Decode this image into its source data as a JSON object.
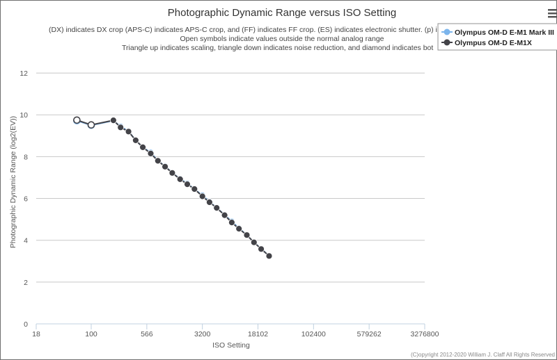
{
  "chart_data": {
    "type": "line",
    "title": "Photographic Dynamic Range versus ISO Setting",
    "subtitle_lines": [
      "(DX) indicates DX crop (APS-C) indicates APS-C crop, and (FF) indicates FF crop. (ES) indicates electronic shutter. (p) ind",
      "Open symbols indicate values outside the normal analog range",
      "Triangle up indicates scaling, triangle down indicates noise reduction, and diamond indicates bot"
    ],
    "xlabel": "ISO Setting",
    "ylabel": "Photographic Dynamic Range (log2(EV))",
    "x_scale": "log2",
    "xlim": [
      18,
      3276800
    ],
    "x_ticks": [
      18,
      100,
      566,
      3200,
      18102,
      102400,
      579262,
      3276800
    ],
    "x_tick_labels": [
      "18",
      "100",
      "566",
      "3200",
      "18102",
      "102400",
      "579262",
      "3276800"
    ],
    "ylim": [
      0,
      13
    ],
    "y_ticks": [
      0,
      2,
      4,
      6,
      8,
      10,
      12
    ],
    "y_tick_labels": [
      "0",
      "2",
      "4",
      "6",
      "8",
      "10",
      "12"
    ],
    "grid": true,
    "legend_position": "top-right",
    "credit": "(C)opyright 2012-2020 William J. Claff All Rights Reserved",
    "series": [
      {
        "name": "Olympus OM-D E-M1 Mark III",
        "color": "#7cb5ec",
        "marker": "circle",
        "points": [
          {
            "x": 64,
            "y": 9.72,
            "open": true
          },
          {
            "x": 100,
            "y": 9.5,
            "open": true
          },
          {
            "x": 200,
            "y": 9.72,
            "open": false
          },
          {
            "x": 250,
            "y": 9.45,
            "open": false
          },
          {
            "x": 320,
            "y": 9.22,
            "open": false
          },
          {
            "x": 400,
            "y": 8.78,
            "open": false
          },
          {
            "x": 500,
            "y": 8.45,
            "open": false
          },
          {
            "x": 640,
            "y": 8.2,
            "open": false
          },
          {
            "x": 800,
            "y": 7.8,
            "open": false
          },
          {
            "x": 1000,
            "y": 7.55,
            "open": false
          },
          {
            "x": 1250,
            "y": 7.22,
            "open": false
          },
          {
            "x": 1600,
            "y": 6.95,
            "open": false
          },
          {
            "x": 2000,
            "y": 6.72,
            "open": false
          },
          {
            "x": 2500,
            "y": 6.45,
            "open": false
          },
          {
            "x": 3200,
            "y": 6.15,
            "open": false
          },
          {
            "x": 4000,
            "y": 5.85,
            "open": false
          },
          {
            "x": 5000,
            "y": 5.55,
            "open": false
          },
          {
            "x": 6400,
            "y": 5.22,
            "open": false
          },
          {
            "x": 8000,
            "y": 4.9,
            "open": false
          },
          {
            "x": 10000,
            "y": 4.58,
            "open": false
          },
          {
            "x": 12800,
            "y": 4.25,
            "open": false
          },
          {
            "x": 16000,
            "y": 3.9,
            "open": false
          },
          {
            "x": 20000,
            "y": 3.6,
            "open": false
          },
          {
            "x": 25600,
            "y": 3.25,
            "open": false
          }
        ]
      },
      {
        "name": "Olympus OM-D E-M1X",
        "color": "#434348",
        "marker": "circle",
        "points": [
          {
            "x": 64,
            "y": 9.75,
            "open": true
          },
          {
            "x": 100,
            "y": 9.52,
            "open": true
          },
          {
            "x": 200,
            "y": 9.74,
            "open": false
          },
          {
            "x": 250,
            "y": 9.4,
            "open": false
          },
          {
            "x": 320,
            "y": 9.2,
            "open": false
          },
          {
            "x": 400,
            "y": 8.78,
            "open": false
          },
          {
            "x": 500,
            "y": 8.45,
            "open": false
          },
          {
            "x": 640,
            "y": 8.15,
            "open": false
          },
          {
            "x": 800,
            "y": 7.8,
            "open": false
          },
          {
            "x": 1000,
            "y": 7.52,
            "open": false
          },
          {
            "x": 1250,
            "y": 7.22,
            "open": false
          },
          {
            "x": 1600,
            "y": 6.92,
            "open": false
          },
          {
            "x": 2000,
            "y": 6.68,
            "open": false
          },
          {
            "x": 2500,
            "y": 6.45,
            "open": false
          },
          {
            "x": 3200,
            "y": 6.1,
            "open": false
          },
          {
            "x": 4000,
            "y": 5.82,
            "open": false
          },
          {
            "x": 5000,
            "y": 5.55,
            "open": false
          },
          {
            "x": 6400,
            "y": 5.2,
            "open": false
          },
          {
            "x": 8000,
            "y": 4.85,
            "open": false
          },
          {
            "x": 10000,
            "y": 4.55,
            "open": false
          },
          {
            "x": 12800,
            "y": 4.25,
            "open": false
          },
          {
            "x": 16000,
            "y": 3.9,
            "open": false
          },
          {
            "x": 20000,
            "y": 3.58,
            "open": false
          },
          {
            "x": 25600,
            "y": 3.25,
            "open": false
          }
        ]
      }
    ]
  },
  "menu_icon": "hamburger-menu-icon"
}
